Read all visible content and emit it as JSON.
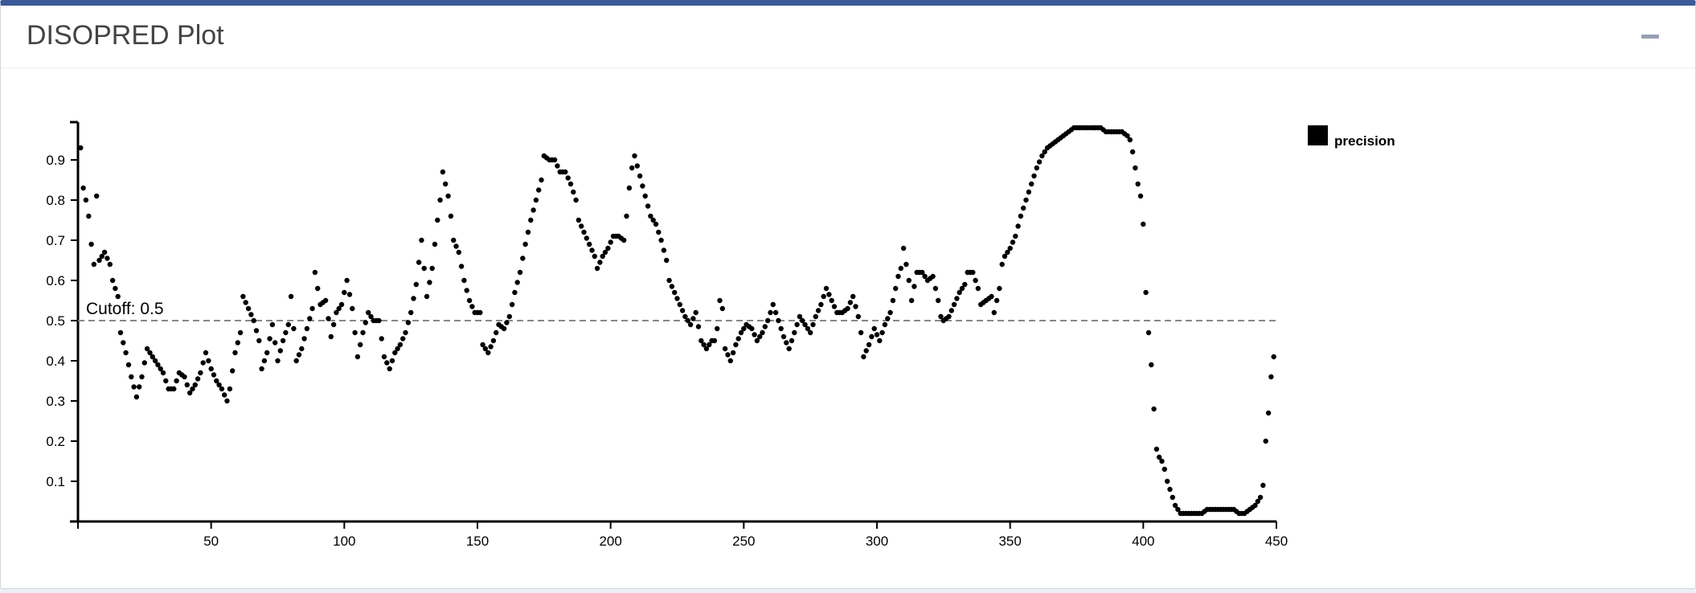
{
  "panel": {
    "title": "DISOPRED Plot"
  },
  "chart_data": {
    "type": "scatter",
    "title": "",
    "xlabel": "",
    "ylabel": "",
    "xlim": [
      0,
      450
    ],
    "ylim": [
      0,
      0.97
    ],
    "x_ticks": [
      50,
      100,
      150,
      200,
      250,
      300,
      350,
      400,
      450
    ],
    "y_ticks": [
      0.1,
      0.2,
      0.3,
      0.4,
      0.5,
      0.6,
      0.7,
      0.8,
      0.9
    ],
    "cutoff": {
      "value": 0.5,
      "label": "Cutoff: 0.5"
    },
    "legend": {
      "position": "top-right",
      "entries": [
        "precision"
      ]
    },
    "grid": false,
    "series": [
      {
        "name": "precision",
        "color": "#000000",
        "anchors": [
          [
            1,
            0.93
          ],
          [
            2,
            0.83
          ],
          [
            3,
            0.8
          ],
          [
            4,
            0.76
          ],
          [
            5,
            0.69
          ],
          [
            6,
            0.64
          ],
          [
            7,
            0.81
          ],
          [
            8,
            0.65
          ],
          [
            10,
            0.67
          ],
          [
            12,
            0.64
          ],
          [
            13,
            0.6
          ],
          [
            15,
            0.56
          ],
          [
            16,
            0.47
          ],
          [
            18,
            0.42
          ],
          [
            20,
            0.36
          ],
          [
            22,
            0.31
          ],
          [
            24,
            0.36
          ],
          [
            26,
            0.43
          ],
          [
            28,
            0.41
          ],
          [
            30,
            0.39
          ],
          [
            32,
            0.37
          ],
          [
            34,
            0.33
          ],
          [
            36,
            0.33
          ],
          [
            38,
            0.37
          ],
          [
            40,
            0.36
          ],
          [
            42,
            0.32
          ],
          [
            44,
            0.34
          ],
          [
            46,
            0.37
          ],
          [
            48,
            0.42
          ],
          [
            50,
            0.38
          ],
          [
            52,
            0.35
          ],
          [
            54,
            0.33
          ],
          [
            56,
            0.3
          ],
          [
            57,
            0.33
          ],
          [
            59,
            0.42
          ],
          [
            61,
            0.47
          ],
          [
            62,
            0.56
          ],
          [
            64,
            0.53
          ],
          [
            66,
            0.5
          ],
          [
            68,
            0.45
          ],
          [
            69,
            0.38
          ],
          [
            71,
            0.42
          ],
          [
            73,
            0.49
          ],
          [
            75,
            0.4
          ],
          [
            77,
            0.45
          ],
          [
            79,
            0.49
          ],
          [
            80,
            0.56
          ],
          [
            82,
            0.4
          ],
          [
            84,
            0.43
          ],
          [
            86,
            0.48
          ],
          [
            88,
            0.53
          ],
          [
            89,
            0.62
          ],
          [
            91,
            0.54
          ],
          [
            93,
            0.55
          ],
          [
            95,
            0.46
          ],
          [
            97,
            0.52
          ],
          [
            99,
            0.54
          ],
          [
            101,
            0.6
          ],
          [
            103,
            0.53
          ],
          [
            105,
            0.41
          ],
          [
            107,
            0.47
          ],
          [
            109,
            0.52
          ],
          [
            111,
            0.5
          ],
          [
            113,
            0.5
          ],
          [
            115,
            0.41
          ],
          [
            117,
            0.38
          ],
          [
            119,
            0.42
          ],
          [
            121,
            0.44
          ],
          [
            123,
            0.47
          ],
          [
            125,
            0.52
          ],
          [
            127,
            0.59
          ],
          [
            129,
            0.7
          ],
          [
            131,
            0.56
          ],
          [
            133,
            0.63
          ],
          [
            135,
            0.75
          ],
          [
            136,
            0.8
          ],
          [
            137,
            0.87
          ],
          [
            139,
            0.81
          ],
          [
            140,
            0.76
          ],
          [
            141,
            0.7
          ],
          [
            143,
            0.67
          ],
          [
            145,
            0.6
          ],
          [
            147,
            0.55
          ],
          [
            149,
            0.52
          ],
          [
            151,
            0.52
          ],
          [
            152,
            0.44
          ],
          [
            154,
            0.42
          ],
          [
            156,
            0.45
          ],
          [
            158,
            0.49
          ],
          [
            160,
            0.48
          ],
          [
            162,
            0.51
          ],
          [
            164,
            0.57
          ],
          [
            166,
            0.62
          ],
          [
            168,
            0.69
          ],
          [
            170,
            0.75
          ],
          [
            172,
            0.8
          ],
          [
            174,
            0.85
          ],
          [
            175,
            0.91
          ],
          [
            177,
            0.9
          ],
          [
            179,
            0.9
          ],
          [
            181,
            0.87
          ],
          [
            183,
            0.87
          ],
          [
            185,
            0.84
          ],
          [
            187,
            0.8
          ],
          [
            188,
            0.75
          ],
          [
            190,
            0.72
          ],
          [
            192,
            0.69
          ],
          [
            194,
            0.66
          ],
          [
            195,
            0.63
          ],
          [
            197,
            0.66
          ],
          [
            199,
            0.68
          ],
          [
            201,
            0.71
          ],
          [
            203,
            0.71
          ],
          [
            205,
            0.7
          ],
          [
            206,
            0.76
          ],
          [
            207,
            0.83
          ],
          [
            208,
            0.88
          ],
          [
            209,
            0.91
          ],
          [
            211,
            0.86
          ],
          [
            213,
            0.81
          ],
          [
            215,
            0.76
          ],
          [
            217,
            0.74
          ],
          [
            219,
            0.7
          ],
          [
            221,
            0.65
          ],
          [
            222,
            0.6
          ],
          [
            224,
            0.57
          ],
          [
            226,
            0.54
          ],
          [
            228,
            0.51
          ],
          [
            230,
            0.49
          ],
          [
            232,
            0.52
          ],
          [
            234,
            0.45
          ],
          [
            236,
            0.43
          ],
          [
            238,
            0.45
          ],
          [
            239,
            0.45
          ],
          [
            240,
            0.48
          ],
          [
            241,
            0.55
          ],
          [
            242,
            0.53
          ],
          [
            243,
            0.43
          ],
          [
            245,
            0.4
          ],
          [
            247,
            0.44
          ],
          [
            249,
            0.47
          ],
          [
            251,
            0.49
          ],
          [
            253,
            0.48
          ],
          [
            255,
            0.45
          ],
          [
            257,
            0.47
          ],
          [
            259,
            0.5
          ],
          [
            261,
            0.54
          ],
          [
            263,
            0.5
          ],
          [
            265,
            0.46
          ],
          [
            267,
            0.43
          ],
          [
            269,
            0.47
          ],
          [
            271,
            0.51
          ],
          [
            273,
            0.49
          ],
          [
            275,
            0.47
          ],
          [
            277,
            0.51
          ],
          [
            279,
            0.54
          ],
          [
            281,
            0.58
          ],
          [
            283,
            0.55
          ],
          [
            285,
            0.52
          ],
          [
            287,
            0.52
          ],
          [
            289,
            0.53
          ],
          [
            291,
            0.56
          ],
          [
            293,
            0.51
          ],
          [
            294,
            0.47
          ],
          [
            295,
            0.41
          ],
          [
            297,
            0.44
          ],
          [
            299,
            0.48
          ],
          [
            301,
            0.45
          ],
          [
            303,
            0.49
          ],
          [
            305,
            0.52
          ],
          [
            307,
            0.58
          ],
          [
            308,
            0.61
          ],
          [
            309,
            0.63
          ],
          [
            310,
            0.68
          ],
          [
            312,
            0.6
          ],
          [
            313,
            0.55
          ],
          [
            315,
            0.62
          ],
          [
            317,
            0.62
          ],
          [
            319,
            0.6
          ],
          [
            321,
            0.61
          ],
          [
            323,
            0.55
          ],
          [
            324,
            0.51
          ],
          [
            325,
            0.5
          ],
          [
            327,
            0.51
          ],
          [
            329,
            0.54
          ],
          [
            331,
            0.57
          ],
          [
            333,
            0.59
          ],
          [
            334,
            0.62
          ],
          [
            336,
            0.62
          ],
          [
            338,
            0.58
          ],
          [
            339,
            0.54
          ],
          [
            341,
            0.55
          ],
          [
            343,
            0.56
          ],
          [
            344,
            0.52
          ],
          [
            345,
            0.55
          ],
          [
            346,
            0.58
          ],
          [
            347,
            0.64
          ],
          [
            348,
            0.66
          ],
          [
            350,
            0.68
          ],
          [
            352,
            0.71
          ],
          [
            354,
            0.76
          ],
          [
            356,
            0.8
          ],
          [
            358,
            0.84
          ],
          [
            360,
            0.88
          ],
          [
            362,
            0.91
          ],
          [
            364,
            0.93
          ],
          [
            366,
            0.94
          ],
          [
            368,
            0.95
          ],
          [
            370,
            0.96
          ],
          [
            372,
            0.97
          ],
          [
            374,
            0.98
          ],
          [
            376,
            0.98
          ],
          [
            378,
            0.98
          ],
          [
            380,
            0.98
          ],
          [
            382,
            0.98
          ],
          [
            384,
            0.98
          ],
          [
            386,
            0.97
          ],
          [
            388,
            0.97
          ],
          [
            390,
            0.97
          ],
          [
            392,
            0.97
          ],
          [
            394,
            0.96
          ],
          [
            395,
            0.95
          ],
          [
            396,
            0.92
          ],
          [
            397,
            0.88
          ],
          [
            398,
            0.84
          ],
          [
            399,
            0.81
          ],
          [
            400,
            0.74
          ],
          [
            401,
            0.57
          ],
          [
            402,
            0.47
          ],
          [
            403,
            0.39
          ],
          [
            404,
            0.28
          ],
          [
            405,
            0.18
          ],
          [
            406,
            0.16
          ],
          [
            407,
            0.15
          ],
          [
            408,
            0.13
          ],
          [
            409,
            0.1
          ],
          [
            410,
            0.08
          ],
          [
            411,
            0.06
          ],
          [
            412,
            0.04
          ],
          [
            413,
            0.03
          ],
          [
            414,
            0.02
          ],
          [
            416,
            0.02
          ],
          [
            418,
            0.02
          ],
          [
            420,
            0.02
          ],
          [
            422,
            0.02
          ],
          [
            424,
            0.03
          ],
          [
            426,
            0.03
          ],
          [
            428,
            0.03
          ],
          [
            430,
            0.03
          ],
          [
            432,
            0.03
          ],
          [
            434,
            0.03
          ],
          [
            436,
            0.02
          ],
          [
            438,
            0.02
          ],
          [
            440,
            0.03
          ],
          [
            442,
            0.04
          ],
          [
            443,
            0.05
          ],
          [
            444,
            0.06
          ],
          [
            445,
            0.09
          ],
          [
            446,
            0.2
          ],
          [
            447,
            0.27
          ],
          [
            448,
            0.36
          ],
          [
            449,
            0.41
          ]
        ]
      }
    ]
  }
}
